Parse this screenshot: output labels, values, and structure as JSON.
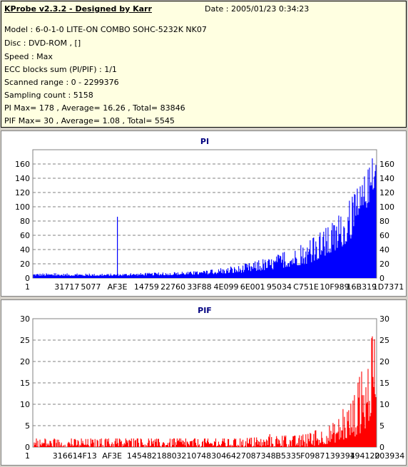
{
  "header": {
    "title": "KProbe v2.3.2 - Designed by Karr",
    "date": "Date : 2005/01/23 0:34:23",
    "lines": [
      "Model : 6-0-1-0 LITE-ON COMBO SOHC-5232K NK07",
      "Disc : DVD-ROM ,  []",
      "Speed : Max",
      "ECC blocks sum (PI/PIF) : 1/1",
      "Scanned range : 0 - 2299376",
      "Sampling count : 5158",
      "PI Max= 178 , Average= 16.26 , Total= 83846",
      "PIF Max= 30 , Average= 1.08 , Total= 5545"
    ]
  },
  "chart_data": [
    {
      "type": "bar",
      "title": "PI",
      "color": "#0000ff",
      "ylim": [
        0,
        180
      ],
      "yticks": [
        0,
        20,
        40,
        60,
        80,
        100,
        120,
        140,
        160
      ],
      "xtick_labels": [
        "1",
        "31717",
        "5077",
        "AF3E",
        "14759",
        "22760",
        "33F88",
        "4E099",
        "6E001",
        "95034",
        "C751E",
        "10F989",
        "16B319",
        "1D7371"
      ],
      "sampling_count": 5158,
      "series_trend": [
        {
          "pos": 0.0,
          "base": 3,
          "peak": 7
        },
        {
          "pos": 0.2,
          "base": 3,
          "peak": 6
        },
        {
          "pos": 0.4,
          "base": 4,
          "peak": 8
        },
        {
          "pos": 0.5,
          "base": 5,
          "peak": 10
        },
        {
          "pos": 0.6,
          "base": 7,
          "peak": 18
        },
        {
          "pos": 0.7,
          "base": 12,
          "peak": 30
        },
        {
          "pos": 0.8,
          "base": 20,
          "peak": 50
        },
        {
          "pos": 0.88,
          "base": 35,
          "peak": 80
        },
        {
          "pos": 0.94,
          "base": 60,
          "peak": 120
        },
        {
          "pos": 1.0,
          "base": 130,
          "peak": 178
        }
      ],
      "spikes": [
        {
          "pos": 0.245,
          "value": 86
        }
      ]
    },
    {
      "type": "bar",
      "title": "PIF",
      "color": "#ff0000",
      "ylim": [
        0,
        30
      ],
      "yticks": [
        0,
        5,
        10,
        15,
        20,
        25,
        30
      ],
      "xtick_labels": [
        "1",
        "31661",
        "4F13",
        "AF3E",
        "14548",
        "21880",
        "32107",
        "48304",
        "64270",
        "87348",
        "B5335",
        "F0987",
        "139394",
        "194120",
        "203934"
      ],
      "sampling_count": 5158,
      "series_trend": [
        {
          "pos": 0.0,
          "base": 0,
          "peak": 2
        },
        {
          "pos": 0.6,
          "base": 0,
          "peak": 2
        },
        {
          "pos": 0.8,
          "base": 0,
          "peak": 3
        },
        {
          "pos": 0.88,
          "base": 1,
          "peak": 6
        },
        {
          "pos": 0.93,
          "base": 2,
          "peak": 12
        },
        {
          "pos": 0.97,
          "base": 4,
          "peak": 20
        },
        {
          "pos": 1.0,
          "base": 10,
          "peak": 30
        }
      ],
      "spikes": [
        {
          "pos": 0.69,
          "value": 3
        }
      ]
    }
  ]
}
